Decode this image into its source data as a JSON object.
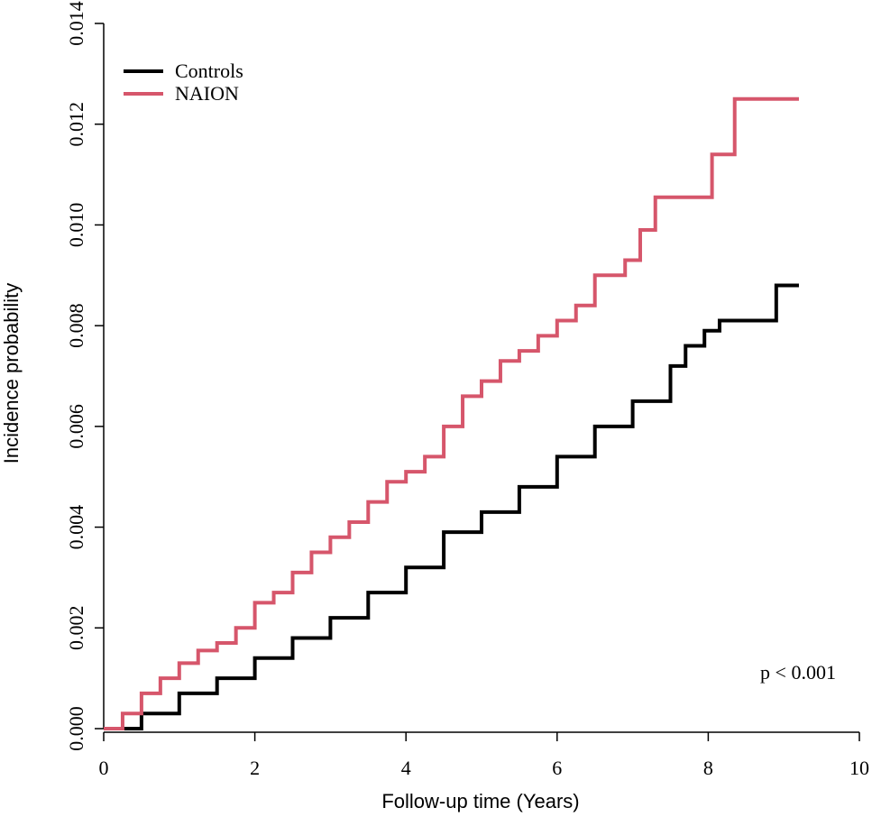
{
  "chart_data": {
    "type": "line",
    "step": "post",
    "x_label": "Follow-up time (Years)",
    "y_label": "Incidence probability",
    "annotation": "p < 0.001",
    "xlim": [
      0,
      10
    ],
    "xticks": [
      0,
      2,
      4,
      6,
      8,
      10
    ],
    "ylim": [
      0,
      0.014
    ],
    "yticks": [
      {
        "value": 0,
        "label": "0.000"
      },
      {
        "value": 0.002,
        "label": "0.002"
      },
      {
        "value": 0.004,
        "label": "0.004"
      },
      {
        "value": 0.006,
        "label": "0.006"
      },
      {
        "value": 0.008,
        "label": "0.008"
      },
      {
        "value": 0.01,
        "label": "0.010"
      },
      {
        "value": 0.012,
        "label": "0.012"
      },
      {
        "value": 0.014,
        "label": "0.014"
      }
    ],
    "legend": "top-left",
    "series": [
      {
        "name": "Controls",
        "color": "#000000",
        "x": [
          0,
          0.5,
          1,
          1.5,
          2,
          2.5,
          3,
          3.5,
          4,
          4.5,
          5,
          5.5,
          6,
          6.5,
          7,
          7.5,
          7.7,
          7.95,
          8.15,
          8.9,
          9.2
        ],
        "values": [
          0,
          0.0003,
          0.0007,
          0.001,
          0.0014,
          0.0018,
          0.0022,
          0.0027,
          0.0032,
          0.0039,
          0.0043,
          0.0048,
          0.0054,
          0.006,
          0.0065,
          0.0072,
          0.0076,
          0.0079,
          0.0081,
          0.0088,
          0.0088
        ]
      },
      {
        "name": "NAION",
        "color": "#d6566b",
        "x": [
          0,
          0.25,
          0.5,
          0.75,
          1,
          1.25,
          1.5,
          1.75,
          2,
          2.25,
          2.5,
          2.75,
          3,
          3.25,
          3.5,
          3.75,
          4,
          4.25,
          4.5,
          4.75,
          5,
          5.25,
          5.5,
          5.75,
          6,
          6.25,
          6.5,
          6.9,
          7.1,
          7.3,
          8.05,
          8.35,
          9.2
        ],
        "values": [
          0,
          0.0003,
          0.0007,
          0.001,
          0.0013,
          0.00155,
          0.0017,
          0.002,
          0.0025,
          0.0027,
          0.0031,
          0.0035,
          0.0038,
          0.0041,
          0.0045,
          0.0049,
          0.0051,
          0.0054,
          0.006,
          0.0066,
          0.0069,
          0.0073,
          0.0075,
          0.0078,
          0.0081,
          0.0084,
          0.009,
          0.0093,
          0.0099,
          0.01055,
          0.0114,
          0.0125,
          0.0125
        ]
      }
    ]
  }
}
